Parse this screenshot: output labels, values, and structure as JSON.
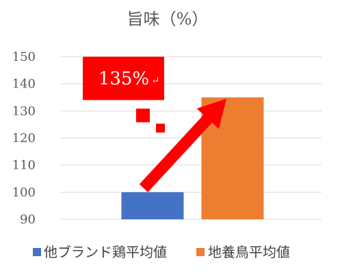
{
  "chart_data": {
    "type": "bar",
    "title": "旨味（%）",
    "categories": [
      "他ブランド鶏平均値",
      "地養鳥平均値"
    ],
    "series": [
      {
        "name": "他ブランド鶏平均値",
        "values": [
          100,
          null
        ],
        "color": "#4472C4"
      },
      {
        "name": "地養鳥平均値",
        "values": [
          null,
          135
        ],
        "color": "#ED7D31"
      }
    ],
    "ylim": [
      90,
      150
    ],
    "yticks": [
      90,
      100,
      110,
      120,
      130,
      140,
      150
    ],
    "grid": true,
    "legend_position": "bottom",
    "annotation": {
      "text": "135%",
      "mark": "↵",
      "box_color": "#FF0000",
      "arrow_color": "#FF0000"
    }
  }
}
